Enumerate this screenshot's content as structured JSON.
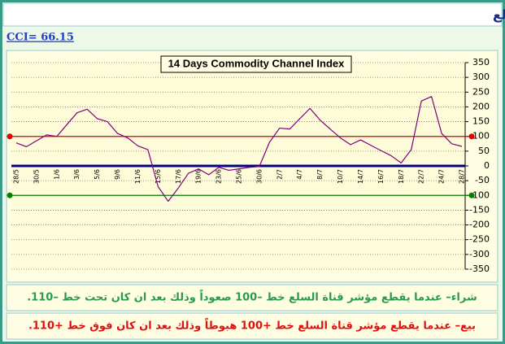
{
  "header": {
    "title": "مؤشر قناة السلع",
    "cci": "CCI= 66.15"
  },
  "chart_data": {
    "type": "line",
    "title": "14 Days Commodity Channel Index",
    "categories": [
      "28/5",
      null,
      "30/5",
      null,
      "1/6",
      null,
      "3/6",
      null,
      "5/6",
      null,
      "9/6",
      null,
      "11/6",
      null,
      "15/6",
      null,
      "17/6",
      null,
      "19/6",
      null,
      "23/6",
      null,
      "25/6",
      null,
      "30/6",
      null,
      "2/7",
      null,
      "4/7",
      null,
      "8/7",
      null,
      "10/7",
      null,
      "14/7",
      null,
      "16/7",
      null,
      "18/7",
      null,
      "22/7",
      null,
      "24/7",
      null,
      "28/7"
    ],
    "series": [
      {
        "name": "CCI",
        "color": "#800080",
        "values": [
          78,
          65,
          85,
          105,
          100,
          140,
          180,
          192,
          160,
          150,
          110,
          95,
          68,
          55,
          -70,
          -120,
          -75,
          -25,
          -10,
          -30,
          -5,
          -15,
          -10,
          -5,
          -2,
          80,
          128,
          125,
          160,
          195,
          155,
          125,
          95,
          72,
          88,
          70,
          52,
          35,
          10,
          55,
          220,
          235,
          110,
          75,
          66.15
        ]
      }
    ],
    "ylim": [
      -350,
      350
    ],
    "yticks": [
      -350,
      -300,
      -250,
      -200,
      -150,
      -100,
      -50,
      0,
      50,
      100,
      150,
      200,
      250,
      300,
      350
    ],
    "grid": true,
    "reference_lines": [
      {
        "value": 100,
        "color": "#e00000"
      },
      {
        "value": 0,
        "color": "#000080"
      },
      {
        "value": -100,
        "color": "#008000"
      }
    ]
  },
  "notes": {
    "buy": "شراء– عندما يقطع مؤشر قناة السلع خط –100 صعوداً وذلك بعد ان كان تحت خط –110.",
    "sell": "بيع– عندما يقطع مؤشر قناة السلع خط +100 هبوطاً وذلك بعد ان كان فوق خط +110."
  }
}
